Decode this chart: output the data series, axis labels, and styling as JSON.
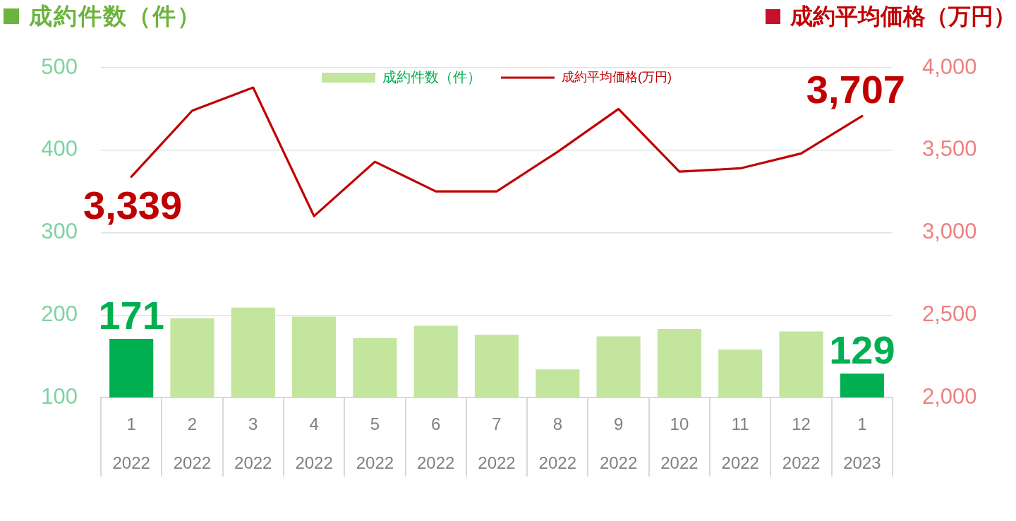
{
  "chart_data": {
    "type": "bar",
    "ylabel": "成約件数（件）",
    "y2label": "成約平均価格（万円）",
    "categories": [
      "1\n2022",
      "2\n2022",
      "3\n2022",
      "4\n2022",
      "5\n2022",
      "6\n2022",
      "7\n2022",
      "8\n2022",
      "9\n2022",
      "10\n2022",
      "11\n2022",
      "12\n2022",
      "1\n2023"
    ],
    "series": [
      {
        "name": "成約件数（件）",
        "color": "#c3e59e",
        "colors": [
          "#00b050",
          "#c3e59e",
          "#c3e59e",
          "#c3e59e",
          "#c3e59e",
          "#c3e59e",
          "#c3e59e",
          "#c3e59e",
          "#c3e59e",
          "#c3e59e",
          "#c3e59e",
          "#c3e59e",
          "#00b050"
        ],
        "values": [
          171,
          196,
          209,
          198,
          172,
          187,
          176,
          134,
          174,
          183,
          158,
          180,
          129
        ],
        "value_labels": [
          "171",
          null,
          null,
          null,
          null,
          null,
          null,
          null,
          null,
          null,
          null,
          null,
          "129"
        ]
      },
      {
        "type": "line",
        "axis": "y2",
        "name": "成約平均価格(万円)",
        "color": "#c00000",
        "values": [
          3339,
          3740,
          3880,
          3100,
          3430,
          3250,
          3250,
          3490,
          3750,
          3370,
          3390,
          3480,
          3707
        ],
        "value_labels": [
          "3,339",
          null,
          null,
          null,
          null,
          null,
          null,
          null,
          null,
          null,
          null,
          null,
          "3,707"
        ]
      }
    ],
    "ylim": [
      100,
      500
    ],
    "yticks": [
      100,
      200,
      300,
      400,
      500
    ],
    "y2lim": [
      2000,
      4000
    ],
    "y2ticks": [
      {
        "value": 2000,
        "label": "2,000"
      },
      {
        "value": 2500,
        "label": "2,500"
      },
      {
        "value": 3000,
        "label": "3,000"
      },
      {
        "value": 3500,
        "label": "3,500"
      },
      {
        "value": 4000,
        "label": "4,000"
      }
    ],
    "grid": "y",
    "legend": "top"
  }
}
